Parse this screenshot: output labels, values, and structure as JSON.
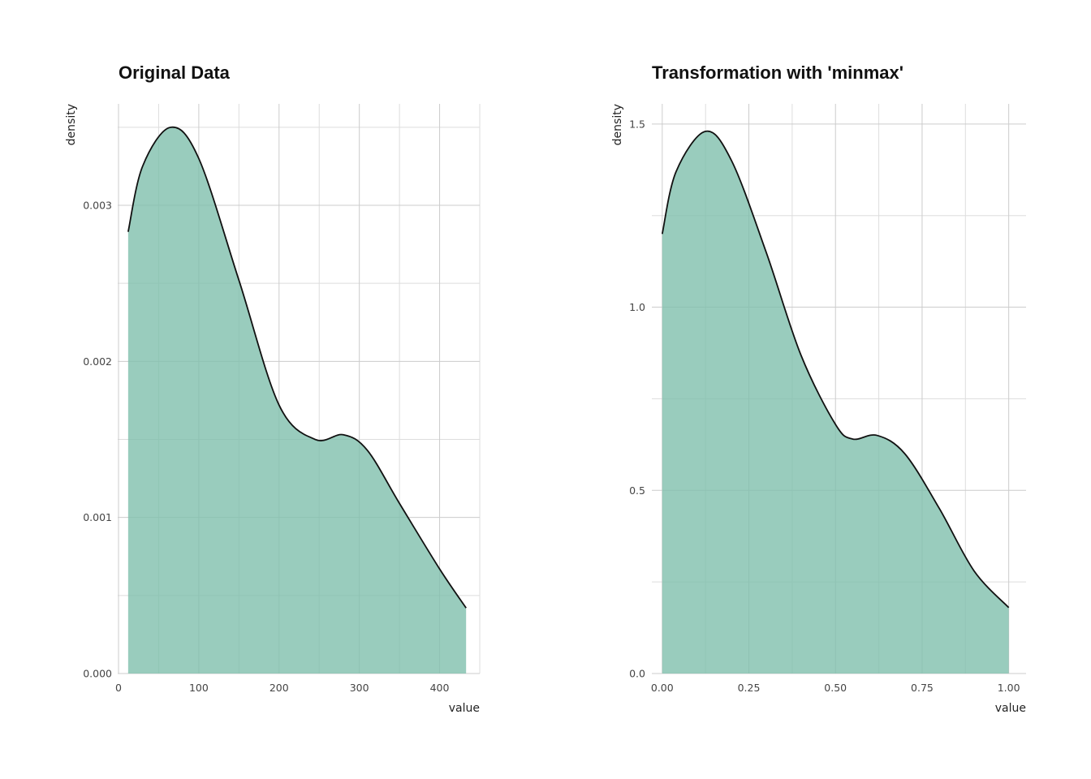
{
  "colors": {
    "fill": "#7fbfad",
    "line": "#111111",
    "grid": "#cccccc"
  },
  "chart_data": [
    {
      "type": "area",
      "title": "Original Data",
      "xlabel": "value",
      "ylabel": "density",
      "xlim": [
        -1,
        450
      ],
      "ylim": [
        0,
        0.00365
      ],
      "xticks": [
        0,
        100,
        200,
        300,
        400
      ],
      "xtick_labels": [
        "0",
        "100",
        "200",
        "300",
        "400"
      ],
      "yticks": [
        0,
        0.001,
        0.002,
        0.003
      ],
      "ytick_labels": [
        "0.000",
        "0.001",
        "0.002",
        "0.003"
      ],
      "x": [
        12,
        30,
        65,
        100,
        150,
        200,
        245,
        280,
        310,
        350,
        400,
        433
      ],
      "y": [
        0.00283,
        0.00325,
        0.0035,
        0.0033,
        0.00252,
        0.00172,
        0.0015,
        0.00153,
        0.00143,
        0.00109,
        0.00067,
        0.00042
      ]
    },
    {
      "type": "area",
      "title": "Transformation with 'minmax'",
      "xlabel": "value",
      "ylabel": "density",
      "xlim": [
        -0.03,
        1.05
      ],
      "ylim": [
        0,
        1.555
      ],
      "xticks": [
        0,
        0.25,
        0.5,
        0.75,
        1
      ],
      "xtick_labels": [
        "0.00",
        "0.25",
        "0.50",
        "0.75",
        "1.00"
      ],
      "yticks": [
        0,
        0.5,
        1,
        1.5
      ],
      "ytick_labels": [
        "0.0",
        "0.5",
        "1.0",
        "1.5"
      ],
      "x": [
        0,
        0.04,
        0.125,
        0.2,
        0.3,
        0.4,
        0.5,
        0.55,
        0.62,
        0.7,
        0.8,
        0.9,
        1.0
      ],
      "y": [
        1.2,
        1.37,
        1.48,
        1.4,
        1.15,
        0.87,
        0.68,
        0.64,
        0.65,
        0.6,
        0.45,
        0.28,
        0.18
      ]
    }
  ]
}
